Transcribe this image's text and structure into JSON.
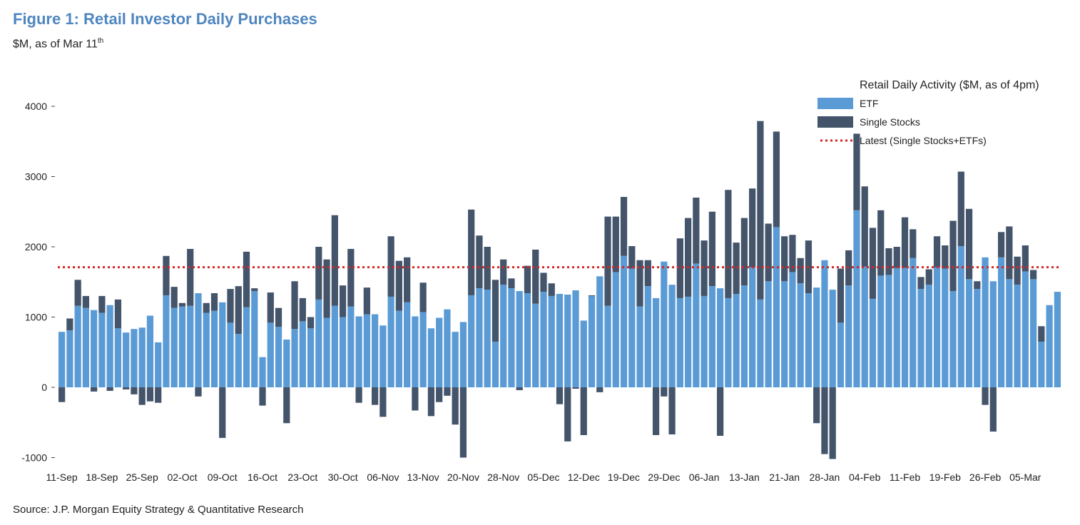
{
  "header": {
    "title": "Figure 1: Retail Investor Daily Purchases",
    "subtitle_main": "$M, as of Mar 11",
    "subtitle_sup": "th"
  },
  "footer": {
    "source": "Source: J.P. Morgan Equity Strategy & Quantitative Research"
  },
  "colors": {
    "etf": "#5b9bd5",
    "single_stocks": "#44546a",
    "latest_line": "#d62728",
    "title": "#4f86bf"
  },
  "chart_data": {
    "type": "bar",
    "stacked": true,
    "title": "",
    "xlabel": "",
    "ylabel": "",
    "ylim": [
      -1050,
      4100
    ],
    "yticks": [
      -1000,
      0,
      1000,
      2000,
      3000,
      4000
    ],
    "ytick_labels": [
      "-1000",
      "0",
      "1000",
      "2000",
      "3000",
      "4000"
    ],
    "grid": false,
    "legend": {
      "title": "Retail Daily Activity ($M, as of 4pm)",
      "position": "top-right",
      "entries": [
        "ETF",
        "Single Stocks",
        "Latest (Single Stocks+ETFs)"
      ]
    },
    "x_tick_labels": [
      "11-Sep",
      "18-Sep",
      "25-Sep",
      "02-Oct",
      "09-Oct",
      "16-Oct",
      "23-Oct",
      "30-Oct",
      "06-Nov",
      "13-Nov",
      "20-Nov",
      "28-Nov",
      "05-Dec",
      "12-Dec",
      "19-Dec",
      "29-Dec",
      "06-Jan",
      "13-Jan",
      "21-Jan",
      "28-Jan",
      "04-Feb",
      "11-Feb",
      "19-Feb",
      "26-Feb",
      "05-Mar"
    ],
    "x_tick_bar_index": [
      0,
      5,
      10,
      15,
      20,
      25,
      30,
      35,
      40,
      45,
      50,
      55,
      60,
      65,
      70,
      75,
      80,
      85,
      90,
      95,
      100,
      105,
      110,
      115,
      120
    ],
    "latest_value": 1710,
    "series": [
      {
        "name": "ETF",
        "values": [
          790,
          810,
          1160,
          1130,
          1100,
          1060,
          1170,
          840,
          780,
          830,
          850,
          1020,
          640,
          1310,
          1130,
          1150,
          1160,
          1340,
          1060,
          1090,
          1210,
          920,
          760,
          1140,
          1370,
          430,
          920,
          860,
          680,
          830,
          940,
          840,
          1250,
          990,
          1160,
          1000,
          1150,
          1010,
          1040,
          1040,
          880,
          1290,
          1090,
          1210,
          1010,
          1070,
          840,
          990,
          1110,
          790,
          930,
          1310,
          1410,
          1390,
          650,
          1460,
          1410,
          1370,
          1340,
          1190,
          1360,
          1300,
          1330,
          1320,
          1380,
          950,
          1300,
          1580,
          1160,
          1640,
          1870,
          1690,
          1150,
          1440,
          1270,
          1790,
          1460,
          1270,
          1290,
          1760,
          1300,
          1440,
          1410,
          1270,
          1330,
          1450,
          1710,
          1250,
          1510,
          2280,
          1510,
          1640,
          1480,
          1340,
          1420,
          1810,
          1390,
          920,
          1450,
          2520,
          1720,
          1260,
          1590,
          1600,
          1700,
          1700,
          1840,
          1400,
          1460,
          1710,
          1690,
          1370,
          2010,
          1540,
          1400,
          1850,
          1510,
          1850,
          1540,
          1460,
          1650,
          1540,
          650,
          1170,
          1360
        ]
      },
      {
        "name": "Single Stocks",
        "values": [
          -210,
          170,
          370,
          170,
          -60,
          240,
          -50,
          410,
          -30,
          -100,
          -250,
          -200,
          -220,
          560,
          300,
          50,
          810,
          -130,
          140,
          250,
          -720,
          480,
          680,
          790,
          40,
          -260,
          430,
          270,
          -510,
          680,
          330,
          160,
          750,
          830,
          1290,
          450,
          820,
          -220,
          380,
          -250,
          -420,
          860,
          710,
          640,
          -330,
          420,
          -410,
          -210,
          -120,
          -530,
          -1000,
          1220,
          750,
          610,
          880,
          360,
          140,
          -40,
          390,
          770,
          270,
          180,
          -240,
          -770,
          -20,
          -680,
          10,
          -70,
          1270,
          790,
          840,
          320,
          660,
          370,
          -680,
          -130,
          -670,
          850,
          1120,
          940,
          790,
          1060,
          -690,
          1540,
          730,
          960,
          1120,
          2540,
          820,
          1360,
          640,
          530,
          360,
          750,
          -510,
          -950,
          -1020,
          770,
          500,
          1090,
          1140,
          1010,
          930,
          380,
          300,
          720,
          410,
          170,
          220,
          440,
          330,
          1000,
          1060,
          1000,
          110,
          -250,
          -630,
          360,
          750,
          400,
          370,
          130,
          220
        ]
      }
    ]
  }
}
